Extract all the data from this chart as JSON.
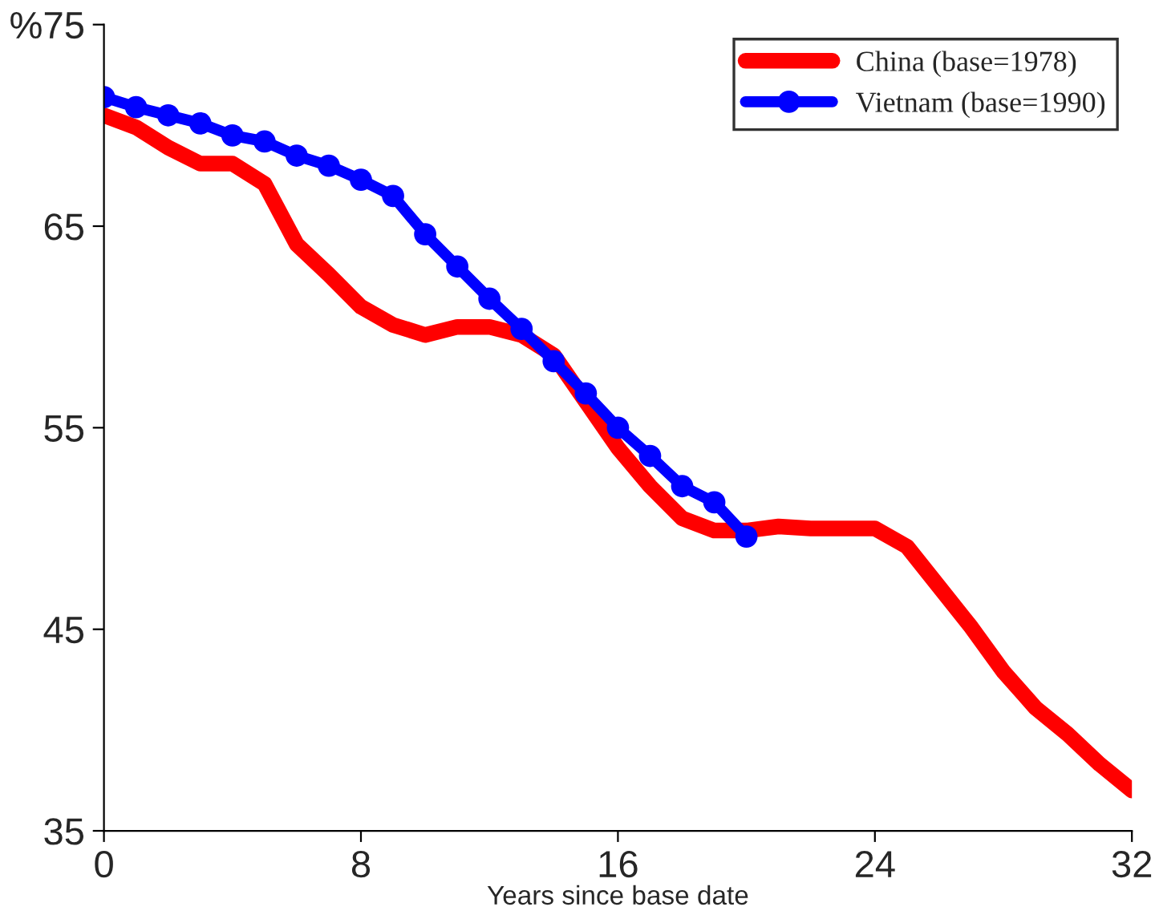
{
  "chart_data": {
    "type": "line",
    "xlabel": "Years since base date",
    "xlim": [
      0,
      32
    ],
    "xticks": [
      0,
      8,
      16,
      24,
      32
    ],
    "ylim": [
      35,
      75
    ],
    "yticks": [
      35,
      45,
      55,
      65,
      {
        "value": 75,
        "label": "%75"
      }
    ],
    "grid": false,
    "legend": "top right",
    "series": [
      {
        "name": "China (base=1978)",
        "color": "#ff0000",
        "marker": "none",
        "x": [
          0,
          1,
          2,
          3,
          4,
          5,
          6,
          7,
          8,
          9,
          10,
          11,
          12,
          13,
          14,
          15,
          16,
          17,
          18,
          19,
          20,
          21,
          22,
          23,
          24,
          25,
          26,
          27,
          28,
          29,
          30,
          31,
          32
        ],
        "values": [
          70.5,
          69.9,
          68.9,
          68.1,
          68.1,
          67.1,
          64.1,
          62.6,
          61.0,
          60.1,
          59.6,
          60.0,
          60.0,
          59.6,
          58.6,
          56.3,
          54.0,
          52.1,
          50.5,
          49.9,
          49.9,
          50.1,
          50.0,
          50.0,
          50.0,
          49.1,
          47.1,
          45.1,
          42.9,
          41.1,
          39.8,
          38.3,
          37.0
        ]
      },
      {
        "name": "Vietnam (base=1990)",
        "color": "#0000ff",
        "marker": "circle",
        "x": [
          0,
          1,
          2,
          3,
          4,
          5,
          6,
          7,
          8,
          9,
          10,
          11,
          12,
          13,
          14,
          15,
          16,
          17,
          18,
          19,
          20
        ],
        "values": [
          71.4,
          70.9,
          70.5,
          70.1,
          69.5,
          69.2,
          68.5,
          68.0,
          67.3,
          66.5,
          64.6,
          63.0,
          61.4,
          59.9,
          58.3,
          56.7,
          55.0,
          53.6,
          52.1,
          51.3,
          49.6
        ]
      }
    ]
  }
}
